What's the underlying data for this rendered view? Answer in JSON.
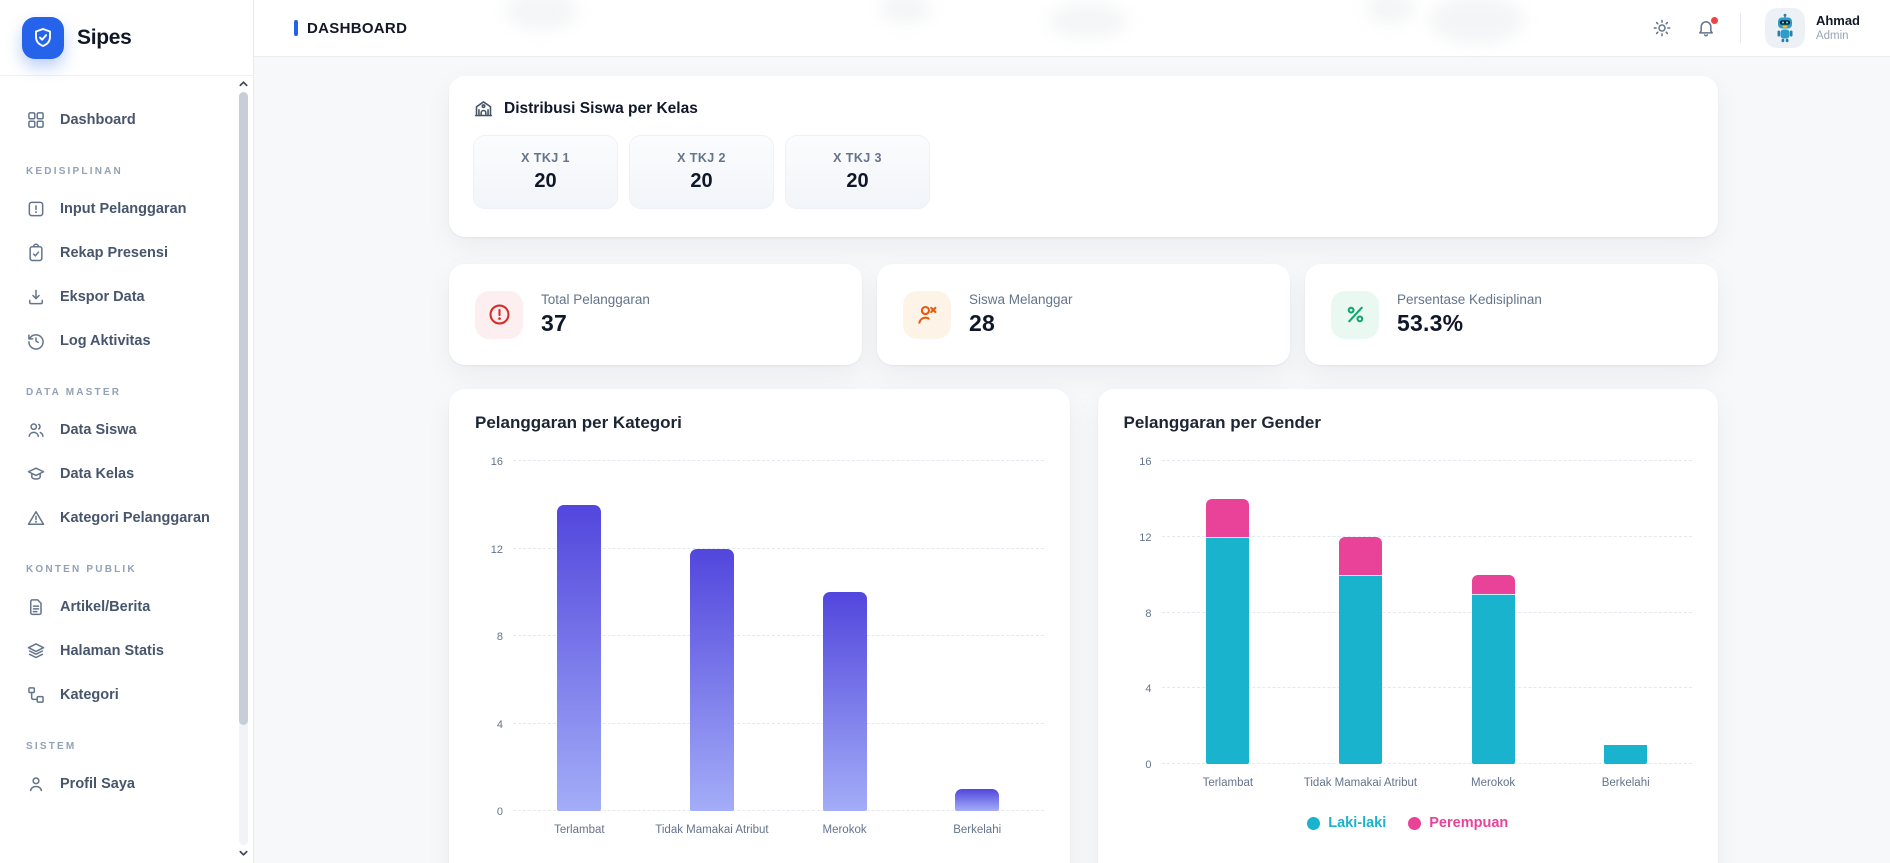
{
  "theme": {
    "accent": "#2563eb"
  },
  "sidebar": {
    "logo_text": "Sipes",
    "sections": [
      {
        "label": "",
        "items": [
          {
            "label": "Dashboard",
            "icon": "dashboard-icon"
          }
        ]
      },
      {
        "label": "KEDISIPLINAN",
        "items": [
          {
            "label": "Input Pelanggaran",
            "icon": "alert-square-icon"
          },
          {
            "label": "Rekap Presensi",
            "icon": "clipboard-check-icon"
          },
          {
            "label": "Ekspor Data",
            "icon": "download-icon"
          },
          {
            "label": "Log Aktivitas",
            "icon": "history-icon"
          }
        ]
      },
      {
        "label": "DATA MASTER",
        "items": [
          {
            "label": "Data Siswa",
            "icon": "users-icon"
          },
          {
            "label": "Data Kelas",
            "icon": "graduation-cap-icon"
          },
          {
            "label": "Kategori Pelanggaran",
            "icon": "alert-triangle-icon"
          }
        ]
      },
      {
        "label": "KONTEN PUBLIK",
        "items": [
          {
            "label": "Artikel/Berita",
            "icon": "file-text-icon"
          },
          {
            "label": "Halaman Statis",
            "icon": "layers-icon"
          },
          {
            "label": "Kategori",
            "icon": "tree-icon"
          }
        ]
      },
      {
        "label": "SISTEM",
        "items": [
          {
            "label": "Profil Saya",
            "icon": "user-icon"
          }
        ]
      }
    ]
  },
  "header": {
    "title": "DASHBOARD",
    "user": {
      "name": "Ahmad",
      "role": "Admin"
    }
  },
  "distribution": {
    "title": "Distribusi Siswa per Kelas",
    "classes": [
      {
        "name": "X TKJ 1",
        "count": "20"
      },
      {
        "name": "X TKJ 2",
        "count": "20"
      },
      {
        "name": "X TKJ 3",
        "count": "20"
      }
    ]
  },
  "stats": [
    {
      "label": "Total Pelanggaran",
      "value": "37",
      "icon": "alert-circle-icon",
      "icon_color": "#d92b2b",
      "icon_bg": "#fdefef"
    },
    {
      "label": "Siswa Melanggar",
      "value": "28",
      "icon": "user-x-icon",
      "icon_color": "#ea580c",
      "icon_bg": "#fdf3e7"
    },
    {
      "label": "Persentase Kedisiplinan",
      "value": "53.3%",
      "icon": "percent-icon",
      "icon_color": "#10a56f",
      "icon_bg": "#e9f9f1"
    }
  ],
  "chart_data": [
    {
      "type": "bar",
      "title": "Pelanggaran per Kategori",
      "categories": [
        "Terlambat",
        "Tidak Mamakai Atribut",
        "Merokok",
        "Berkelahi"
      ],
      "values": [
        14,
        12,
        10,
        1
      ],
      "ylim": [
        0,
        16
      ],
      "yticks": [
        0,
        4,
        8,
        12,
        16
      ],
      "grid": "horizontal-dashed",
      "bar_color_top": "#5246dd",
      "bar_color_bottom": "#a3adf7",
      "legend_position": "none"
    },
    {
      "type": "bar-stacked",
      "title": "Pelanggaran per Gender",
      "categories": [
        "Terlambat",
        "Tidak Mamakai Atribut",
        "Merokok",
        "Berkelahi"
      ],
      "series": [
        {
          "name": "Laki-laki",
          "color": "#1ab3cd",
          "values": [
            12,
            10,
            9,
            1
          ]
        },
        {
          "name": "Perempuan",
          "color": "#e84398",
          "values": [
            2,
            2,
            1,
            0
          ]
        }
      ],
      "ylim": [
        0,
        16
      ],
      "yticks": [
        0,
        4,
        8,
        12,
        16
      ],
      "grid": "horizontal-dashed",
      "legend_position": "bottom"
    }
  ]
}
